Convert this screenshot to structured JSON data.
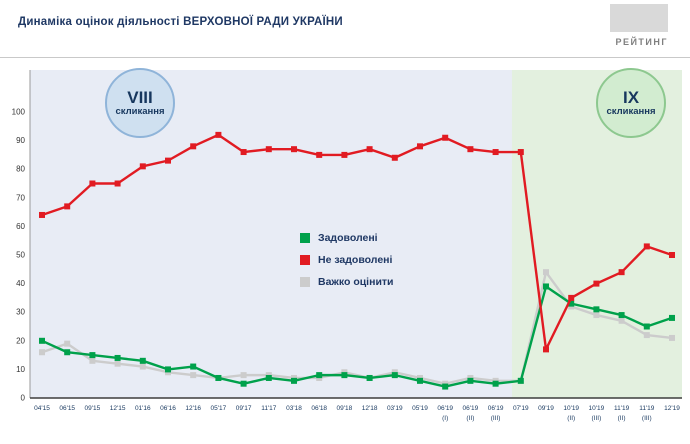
{
  "header": {
    "title": "Динаміка оцінок діяльності ВЕРХОВНОЇ РАДИ УКРАЇНИ",
    "logo_text": "РЕЙТИНГ"
  },
  "chart_data": {
    "type": "line",
    "title": "Динаміка оцінок діяльності ВЕРХОВНОЇ РАДИ УКРАЇНИ",
    "xlabel": "",
    "ylabel": "",
    "ylim": [
      0,
      100
    ],
    "yticks": [
      0,
      10,
      20,
      30,
      40,
      50,
      60,
      70,
      80,
      90,
      100
    ],
    "grid": false,
    "legend_position": "center",
    "marker": "square",
    "categories": [
      "04'15",
      "06'15",
      "09'15",
      "12'15",
      "01'16",
      "06'16",
      "12'16",
      "05'17",
      "09'17",
      "11'17",
      "03'18",
      "06'18",
      "09'18",
      "12'18",
      "03'19",
      "05'19",
      "06'19 (I)",
      "06'19 (II)",
      "06'19 (III)",
      "07'19",
      "09'19",
      "10'19 (II)",
      "10'19 (III)",
      "11'19 (II)",
      "11'19 (III)",
      "12'19"
    ],
    "series": [
      {
        "name": "Задоволені",
        "color": "#00a14b",
        "values": [
          20,
          16,
          15,
          14,
          13,
          10,
          11,
          7,
          5,
          7,
          6,
          8,
          8,
          7,
          8,
          6,
          4,
          6,
          5,
          6,
          39,
          33,
          31,
          29,
          25,
          28
        ]
      },
      {
        "name": "Не задоволені",
        "color": "#e11b22",
        "values": [
          64,
          67,
          75,
          75,
          81,
          83,
          88,
          92,
          86,
          87,
          87,
          85,
          85,
          87,
          84,
          88,
          91,
          87,
          86,
          86,
          17,
          35,
          40,
          44,
          53,
          50
        ]
      },
      {
        "name": "Важко оцінити",
        "color": "#cccccc",
        "values": [
          16,
          19,
          13,
          12,
          11,
          9,
          8,
          7,
          8,
          8,
          7,
          7,
          9,
          7,
          9,
          7,
          5,
          7,
          6,
          6,
          44,
          32,
          29,
          27,
          22,
          21
        ]
      }
    ],
    "regions": [
      {
        "label_top": "VIII",
        "label_bottom": "скликання",
        "bg": "#e8ecf5",
        "badge_bg": "#cfe0f0",
        "badge_border": "#8fb4d9",
        "range": [
          0,
          18.65
        ]
      },
      {
        "label_top": "IX",
        "label_bottom": "скликання",
        "bg": "#e3f0df",
        "badge_bg": "#d2ecd0",
        "badge_border": "#8dc88f",
        "range": [
          18.65,
          25
        ]
      }
    ]
  }
}
